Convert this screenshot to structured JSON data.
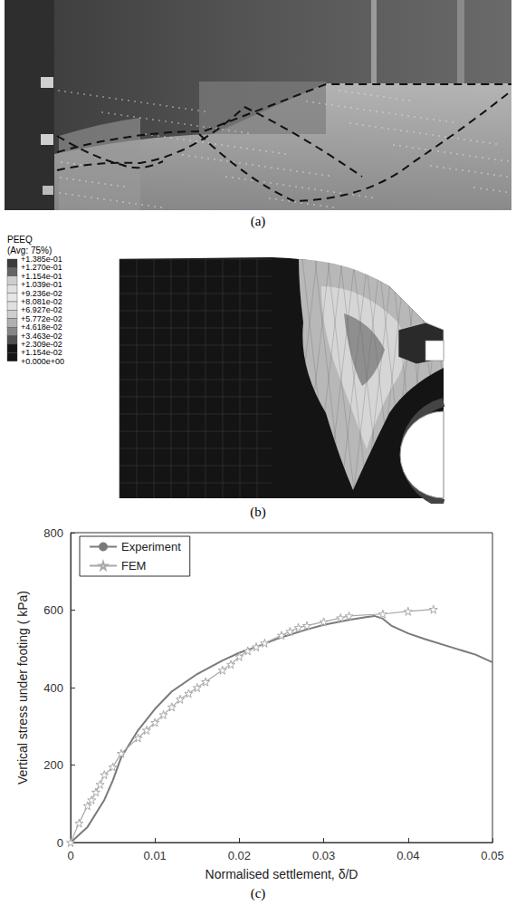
{
  "panel_labels": [
    "(a)",
    "(b)",
    "(c)"
  ],
  "fem_legend": {
    "title": "PEEQ",
    "subtitle": "(Avg: 75%)",
    "levels": [
      "+1.385e-01",
      "+1.270e-01",
      "+1.154e-01",
      "+1.039e-01",
      "+9.236e-02",
      "+8.081e-02",
      "+6.927e-02",
      "+5.772e-02",
      "+4.618e-02",
      "+3.463e-02",
      "+2.309e-02",
      "+1.154e-02",
      "+0.000e+00"
    ]
  },
  "chart_data": {
    "type": "line",
    "xlabel": "Normalised settlement, δ/D",
    "ylabel": "Vertical stress under footing ( kPa)",
    "xlim": [
      0,
      0.05
    ],
    "xticks": [
      0,
      0.01,
      0.02,
      0.03,
      0.04,
      0.05
    ],
    "ylim": [
      0,
      800
    ],
    "yticks": [
      0,
      200,
      400,
      600,
      800
    ],
    "grid": false,
    "legend": "upper left",
    "series": [
      {
        "name": "Experiment",
        "color": "#7a7a7a",
        "line_style": "solid",
        "marker": "none",
        "x": [
          0,
          0.002,
          0.004,
          0.005,
          0.006,
          0.008,
          0.01,
          0.012,
          0.015,
          0.018,
          0.02,
          0.022,
          0.025,
          0.028,
          0.03,
          0.033,
          0.035,
          0.036,
          0.037,
          0.038,
          0.04,
          0.042,
          0.045,
          0.048,
          0.05
        ],
        "values": [
          0,
          40,
          110,
          160,
          220,
          290,
          345,
          390,
          435,
          470,
          490,
          505,
          530,
          550,
          562,
          575,
          582,
          585,
          578,
          560,
          540,
          525,
          505,
          485,
          465
        ]
      },
      {
        "name": "FEM",
        "color": "#a8a8a8",
        "line_style": "solid",
        "marker": "star",
        "x": [
          0,
          0.001,
          0.002,
          0.0025,
          0.003,
          0.0035,
          0.004,
          0.005,
          0.006,
          0.008,
          0.009,
          0.01,
          0.011,
          0.012,
          0.013,
          0.014,
          0.015,
          0.016,
          0.018,
          0.019,
          0.02,
          0.021,
          0.022,
          0.023,
          0.025,
          0.026,
          0.027,
          0.028,
          0.03,
          0.032,
          0.033,
          0.037,
          0.04,
          0.043
        ],
        "values": [
          0,
          50,
          95,
          110,
          130,
          150,
          175,
          195,
          230,
          270,
          290,
          310,
          330,
          350,
          370,
          385,
          400,
          415,
          445,
          460,
          480,
          495,
          505,
          515,
          535,
          545,
          555,
          560,
          570,
          580,
          585,
          590,
          597,
          602
        ]
      }
    ]
  }
}
